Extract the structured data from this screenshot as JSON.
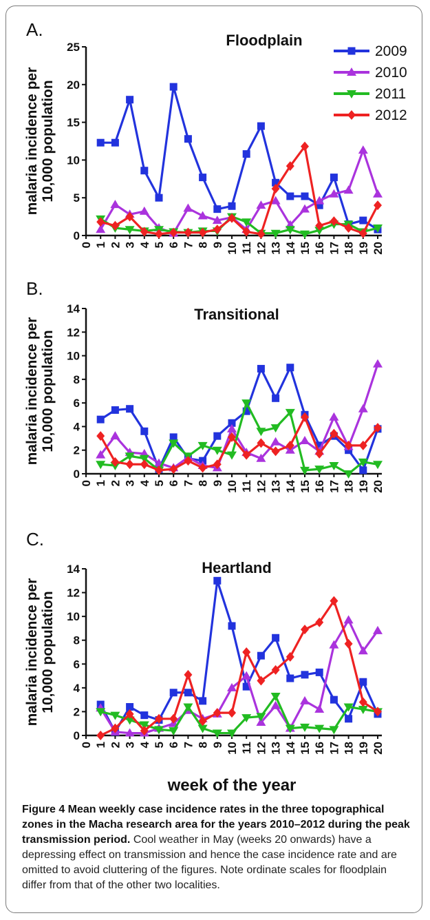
{
  "legend": [
    "2009",
    "2010",
    "2011",
    "2012"
  ],
  "colors": {
    "2009": "#2233dd",
    "2010": "#aa33dd",
    "2011": "#22bb22",
    "2012": "#ee2222"
  },
  "caption": {
    "bold": "Figure 4 Mean weekly case incidence rates in the three topographical zones in the Macha research area for the years 2010–2012 during the peak transmission period.",
    "normal": " Cool weather in May (weeks 20 onwards) have a depressing effect on transmission and hence the case incidence rate and are omitted to avoid cluttering of the figures. Note ordinate scales for floodplain differ from that of the other two localities."
  },
  "chart_data": [
    {
      "type": "line",
      "panel_letter": "A.",
      "title": "Floodplain",
      "ylabel_line1": "malaria incidence per",
      "ylabel_line2": "10,000 population",
      "xlabel": "",
      "ylim": [
        0,
        25
      ],
      "yticks": [
        0,
        5,
        10,
        15,
        20,
        25
      ],
      "x": [
        1,
        2,
        3,
        4,
        5,
        6,
        7,
        8,
        9,
        10,
        11,
        12,
        13,
        14,
        15,
        16,
        17,
        18,
        19,
        20
      ],
      "xticks": [
        0,
        1,
        2,
        3,
        4,
        5,
        6,
        7,
        8,
        9,
        10,
        11,
        12,
        13,
        14,
        15,
        16,
        17,
        18,
        19,
        20
      ],
      "show_legend": true,
      "series": [
        {
          "name": "2009",
          "values": [
            12.3,
            12.3,
            18.0,
            8.6,
            5.0,
            19.7,
            12.8,
            7.7,
            3.5,
            3.9,
            10.8,
            14.5,
            7.0,
            5.2,
            5.2,
            4.0,
            7.7,
            1.5,
            2.0,
            0.8
          ]
        },
        {
          "name": "2010",
          "values": [
            0.8,
            4.1,
            2.8,
            3.2,
            1.0,
            0.3,
            3.6,
            2.6,
            2.0,
            2.4,
            0.8,
            4.0,
            4.6,
            1.4,
            3.5,
            4.6,
            5.5,
            6.0,
            11.3,
            5.5
          ]
        },
        {
          "name": "2011",
          "values": [
            2.2,
            1.0,
            0.8,
            0.6,
            0.8,
            0.5,
            0.4,
            0.6,
            0.6,
            2.5,
            1.8,
            0.3,
            0.3,
            0.8,
            0.2,
            0.7,
            1.5,
            1.5,
            0.5,
            1.0
          ]
        },
        {
          "name": "2012",
          "values": [
            1.8,
            1.3,
            2.5,
            0.5,
            0.2,
            0.4,
            0.4,
            0.4,
            0.8,
            2.3,
            0.5,
            0.2,
            6.2,
            9.2,
            11.8,
            1.3,
            1.9,
            1.0,
            0.3,
            4.0
          ]
        }
      ]
    },
    {
      "type": "line",
      "panel_letter": "B.",
      "title": "Transitional",
      "ylabel_line1": "malaria incidence per",
      "ylabel_line2": "10,000 population",
      "xlabel": "",
      "ylim": [
        0,
        14
      ],
      "yticks": [
        0,
        2,
        4,
        6,
        8,
        10,
        12,
        14
      ],
      "x": [
        1,
        2,
        3,
        4,
        5,
        6,
        7,
        8,
        9,
        10,
        11,
        12,
        13,
        14,
        15,
        16,
        17,
        18,
        19,
        20
      ],
      "xticks": [
        0,
        1,
        2,
        3,
        4,
        5,
        6,
        7,
        8,
        9,
        10,
        11,
        12,
        13,
        14,
        15,
        16,
        17,
        18,
        19,
        20
      ],
      "show_legend": false,
      "series": [
        {
          "name": "2009",
          "values": [
            4.6,
            5.4,
            5.5,
            3.6,
            0.4,
            3.1,
            1.3,
            1.1,
            3.2,
            4.3,
            5.3,
            8.9,
            6.4,
            9.0,
            5.0,
            2.4,
            3.2,
            2.0,
            0.3,
            3.8
          ]
        },
        {
          "name": "2010",
          "values": [
            1.6,
            3.2,
            1.8,
            1.7,
            0.9,
            0.5,
            1.4,
            0.7,
            0.5,
            3.8,
            1.8,
            1.3,
            2.7,
            2.0,
            2.8,
            1.9,
            4.8,
            2.3,
            5.5,
            9.3
          ]
        },
        {
          "name": "2011",
          "values": [
            0.8,
            0.7,
            1.5,
            1.3,
            0.3,
            2.6,
            1.5,
            2.4,
            2.0,
            1.6,
            6.0,
            3.6,
            3.9,
            5.2,
            0.3,
            0.4,
            0.7,
            0.0,
            1.0,
            0.8
          ]
        },
        {
          "name": "2012",
          "values": [
            3.2,
            1.0,
            0.8,
            0.8,
            0.3,
            0.4,
            1.1,
            0.5,
            0.8,
            3.1,
            1.6,
            2.6,
            1.9,
            2.4,
            4.8,
            1.7,
            3.4,
            2.4,
            2.4,
            3.9
          ]
        }
      ]
    },
    {
      "type": "line",
      "panel_letter": "C.",
      "title": "Heartland",
      "ylabel_line1": "malaria incidence per",
      "ylabel_line2": "10,000 population",
      "xlabel": "week of the year",
      "ylim": [
        0,
        14
      ],
      "yticks": [
        0,
        2,
        4,
        6,
        8,
        10,
        12,
        14
      ],
      "x": [
        1,
        2,
        3,
        4,
        5,
        6,
        7,
        8,
        9,
        10,
        11,
        12,
        13,
        14,
        15,
        16,
        17,
        18,
        19,
        20
      ],
      "xticks": [
        0,
        1,
        2,
        3,
        4,
        5,
        6,
        7,
        8,
        9,
        10,
        11,
        12,
        13,
        14,
        15,
        16,
        17,
        18,
        19,
        20
      ],
      "show_legend": false,
      "series": [
        {
          "name": "2009",
          "values": [
            2.6,
            0.3,
            2.4,
            1.7,
            1.3,
            3.6,
            3.6,
            2.9,
            13.0,
            9.2,
            4.1,
            6.7,
            8.2,
            4.8,
            5.1,
            5.3,
            3.0,
            1.4,
            4.5,
            1.8
          ]
        },
        {
          "name": "2010",
          "values": [
            2.3,
            0.3,
            0.2,
            0.2,
            0.6,
            1.0,
            2.1,
            1.4,
            1.8,
            4.0,
            5.0,
            1.1,
            2.5,
            0.6,
            2.9,
            2.2,
            7.6,
            9.7,
            7.1,
            8.8
          ]
        },
        {
          "name": "2011",
          "values": [
            2.0,
            1.7,
            1.3,
            0.9,
            0.5,
            0.4,
            2.4,
            0.6,
            0.2,
            0.2,
            1.5,
            1.6,
            3.3,
            0.6,
            0.7,
            0.6,
            0.5,
            2.4,
            2.2,
            2.0
          ]
        },
        {
          "name": "2012",
          "values": [
            0.0,
            0.6,
            1.8,
            0.4,
            1.4,
            1.4,
            5.1,
            1.2,
            1.9,
            1.9,
            7.0,
            4.6,
            5.5,
            6.6,
            8.9,
            9.5,
            11.3,
            7.7,
            2.8,
            2.0
          ]
        }
      ]
    }
  ]
}
